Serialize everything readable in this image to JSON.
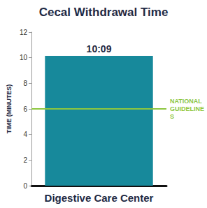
{
  "chart_data": {
    "type": "bar",
    "title": "Cecal Withdrawal Time",
    "y_label": "TIME (MINUTES)",
    "categories": [
      "Digestive Care Center"
    ],
    "values": [
      10.15
    ],
    "value_labels": [
      "10:09"
    ],
    "color": "#17899b",
    "ylim": [
      0,
      12
    ],
    "yticks": [
      0,
      2,
      4,
      6,
      8,
      10,
      12
    ],
    "grid": false,
    "data_labels": true,
    "reference_line": {
      "value": 6,
      "label": "NATIONAL GUIDELINES",
      "color": "#8dc63f"
    }
  }
}
